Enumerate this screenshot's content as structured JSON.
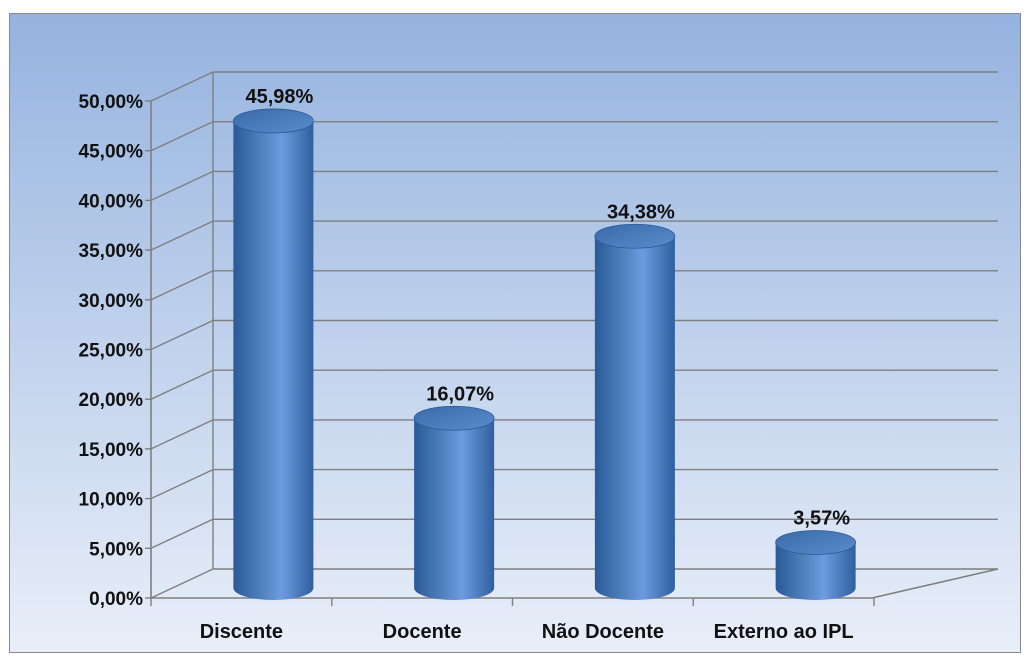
{
  "chart_data": {
    "type": "bar",
    "style": "3d-cylinder",
    "categories": [
      "Discente",
      "Docente",
      "Não Docente",
      "Externo ao IPL"
    ],
    "values": [
      45.98,
      16.07,
      34.38,
      3.57
    ],
    "data_labels": [
      "45,98%",
      "16,07%",
      "34,38%",
      "3,57%"
    ],
    "ylim": [
      0,
      50
    ],
    "yticks": [
      0,
      5,
      10,
      15,
      20,
      25,
      30,
      35,
      40,
      45,
      50
    ],
    "ytick_labels": [
      "0,00%",
      "5,00%",
      "10,00%",
      "15,00%",
      "20,00%",
      "25,00%",
      "30,00%",
      "35,00%",
      "40,00%",
      "45,00%",
      "50,00%"
    ],
    "title": "",
    "xlabel": "",
    "ylabel": "",
    "grid": true,
    "legend": "none",
    "colors": {
      "bar": "#4f81bd",
      "bar_dark": "#2a5a97",
      "bar_light": "#8cb4e8",
      "grid": "#7f7f7f",
      "background_top": "#95b3df",
      "background_bottom": "#e9eff9"
    }
  }
}
